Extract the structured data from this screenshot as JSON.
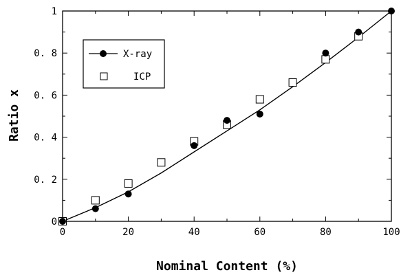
{
  "chart_data": {
    "type": "scatter",
    "title": "",
    "xlabel": "Nominal Content (%)",
    "ylabel": "Ratio x",
    "xlim": [
      0,
      100
    ],
    "ylim": [
      0,
      1
    ],
    "xticks": [
      0,
      20,
      40,
      60,
      80,
      100
    ],
    "yticks": [
      0,
      0.2,
      0.4,
      0.6,
      0.8,
      1
    ],
    "xtick_labels": [
      "0",
      "20",
      "40",
      "60",
      "80",
      "100"
    ],
    "ytick_labels": [
      "0",
      "0. 2",
      "0. 4",
      "0. 6",
      "0. 8",
      "1"
    ],
    "grid": false,
    "legend_position": "upper-left",
    "series": [
      {
        "name": "X-ray",
        "marker": "filled-circle",
        "color": "#000000",
        "x": [
          0,
          10,
          20,
          40,
          50,
          60,
          80,
          90,
          100
        ],
        "y": [
          0.0,
          0.06,
          0.13,
          0.36,
          0.48,
          0.51,
          0.8,
          0.9,
          1.0
        ]
      },
      {
        "name": "ICP",
        "marker": "open-square",
        "color": "#000000",
        "x": [
          0,
          10,
          20,
          30,
          40,
          50,
          60,
          70,
          80,
          90
        ],
        "y": [
          0.0,
          0.1,
          0.18,
          0.28,
          0.38,
          0.46,
          0.58,
          0.66,
          0.77,
          0.88
        ]
      }
    ],
    "fit_curve": {
      "x": [
        0,
        10,
        20,
        30,
        40,
        50,
        60,
        70,
        80,
        90,
        100
      ],
      "y": [
        0.0,
        0.065,
        0.14,
        0.23,
        0.33,
        0.43,
        0.53,
        0.64,
        0.755,
        0.875,
        1.0
      ]
    }
  }
}
